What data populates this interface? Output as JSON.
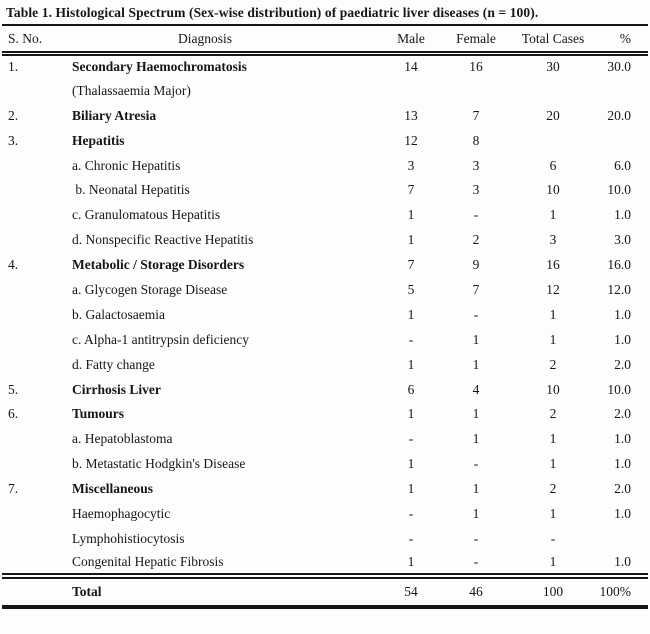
{
  "table": {
    "title": "Table 1. Histological Spectrum (Sex-wise distribution) of paediatric liver diseases (n = 100).",
    "headers": {
      "sno": "S. No.",
      "diagnosis": "Diagnosis",
      "male": "Male",
      "female": "Female",
      "total": "Total Cases",
      "pct": "%"
    },
    "rows": [
      {
        "sno": "1.",
        "diagnosis": "Secondary Haemochromatosis",
        "bold": true,
        "male": "14",
        "female": "16",
        "total": "30",
        "pct": "30.0"
      },
      {
        "sno": "",
        "diagnosis": "(Thalassaemia Major)",
        "bold": false,
        "male": "",
        "female": "",
        "total": "",
        "pct": ""
      },
      {
        "sno": "2.",
        "diagnosis": "Biliary Atresia",
        "bold": true,
        "male": "13",
        "female": "7",
        "total": "20",
        "pct": "20.0"
      },
      {
        "sno": "3.",
        "diagnosis": "Hepatitis",
        "bold": true,
        "male": "12",
        "female": "8",
        "total": "",
        "pct": ""
      },
      {
        "sno": "",
        "diagnosis": "a. Chronic Hepatitis",
        "bold": false,
        "male": "3",
        "female": "3",
        "total": "6",
        "pct": "6.0"
      },
      {
        "sno": "",
        "diagnosis": " b. Neonatal Hepatitis",
        "bold": false,
        "male": "7",
        "female": "3",
        "total": "10",
        "pct": "10.0"
      },
      {
        "sno": "",
        "diagnosis": "c. Granulomatous Hepatitis",
        "bold": false,
        "male": "1",
        "female": "-",
        "total": "1",
        "pct": "1.0"
      },
      {
        "sno": "",
        "diagnosis": "d. Nonspecific Reactive Hepatitis",
        "bold": false,
        "male": "1",
        "female": "2",
        "total": "3",
        "pct": "3.0"
      },
      {
        "sno": "4.",
        "diagnosis": "Metabolic / Storage Disorders",
        "bold": true,
        "male": "7",
        "female": "9",
        "total": "16",
        "pct": "16.0"
      },
      {
        "sno": "",
        "diagnosis": "a. Glycogen Storage Disease",
        "bold": false,
        "male": "5",
        "female": "7",
        "total": "12",
        "pct": "12.0"
      },
      {
        "sno": "",
        "diagnosis": "b. Galactosaemia",
        "bold": false,
        "male": "1",
        "female": "-",
        "total": "1",
        "pct": "1.0"
      },
      {
        "sno": "",
        "diagnosis": "c. Alpha-1 antitrypsin deficiency",
        "bold": false,
        "male": "-",
        "female": "1",
        "total": "1",
        "pct": "1.0"
      },
      {
        "sno": "",
        "diagnosis": "d. Fatty change",
        "bold": false,
        "male": "1",
        "female": "1",
        "total": "2",
        "pct": "2.0"
      },
      {
        "sno": "5.",
        "diagnosis": "Cirrhosis Liver",
        "bold": true,
        "male": "6",
        "female": "4",
        "total": "10",
        "pct": "10.0"
      },
      {
        "sno": "6.",
        "diagnosis": "Tumours",
        "bold": true,
        "male": "1",
        "female": "1",
        "total": "2",
        "pct": "2.0"
      },
      {
        "sno": "",
        "diagnosis": "a. Hepatoblastoma",
        "bold": false,
        "male": "-",
        "female": "1",
        "total": "1",
        "pct": "1.0"
      },
      {
        "sno": "",
        "diagnosis": "b. Metastatic Hodgkin's Disease",
        "bold": false,
        "male": "1",
        "female": "-",
        "total": "1",
        "pct": "1.0"
      },
      {
        "sno": "7.",
        "diagnosis": "Miscellaneous",
        "bold": true,
        "male": "1",
        "female": "1",
        "total": "2",
        "pct": "2.0"
      },
      {
        "sno": "",
        "diagnosis": "Haemophagocytic",
        "bold": false,
        "male": "-",
        "female": "1",
        "total": "1",
        "pct": "1.0"
      },
      {
        "sno": "",
        "diagnosis": "Lymphohistiocytosis",
        "bold": false,
        "male": "-",
        "female": "-",
        "total": "-",
        "pct": ""
      },
      {
        "sno": "",
        "diagnosis": "Congenital Hepatic Fibrosis",
        "bold": false,
        "male": "1",
        "female": "-",
        "total": "1",
        "pct": "1.0"
      }
    ],
    "total_row": {
      "sno": "",
      "diagnosis": "Total",
      "male": "54",
      "female": "46",
      "total": "100",
      "pct": "100%"
    }
  }
}
